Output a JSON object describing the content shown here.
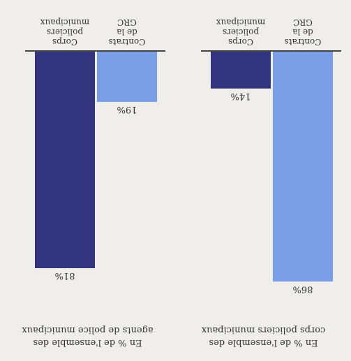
{
  "chart_data": [
    {
      "type": "bar",
      "title": "En % de l'ensemble des\ncorps policiers municipaux",
      "categories": [
        "Contrats\nde la\nGRC",
        "Corps\npoliciers\nmunicipaux"
      ],
      "values": [
        86,
        14
      ],
      "value_labels": [
        "86%",
        "14%"
      ],
      "ylim": [
        0,
        100
      ],
      "colors": [
        "#7b9fe6",
        "#33347e"
      ],
      "grid": false
    },
    {
      "type": "bar",
      "title": "En % de l'ensemble des\nagents de police municipaux",
      "categories": [
        "Contrats\nde la\nGRC",
        "Corps\npoliciers\nmunicipaux"
      ],
      "values": [
        19,
        81
      ],
      "value_labels": [
        "19%",
        "81%"
      ],
      "ylim": [
        0,
        100
      ],
      "colors": [
        "#7b9fe6",
        "#33347e"
      ],
      "grid": false
    }
  ]
}
